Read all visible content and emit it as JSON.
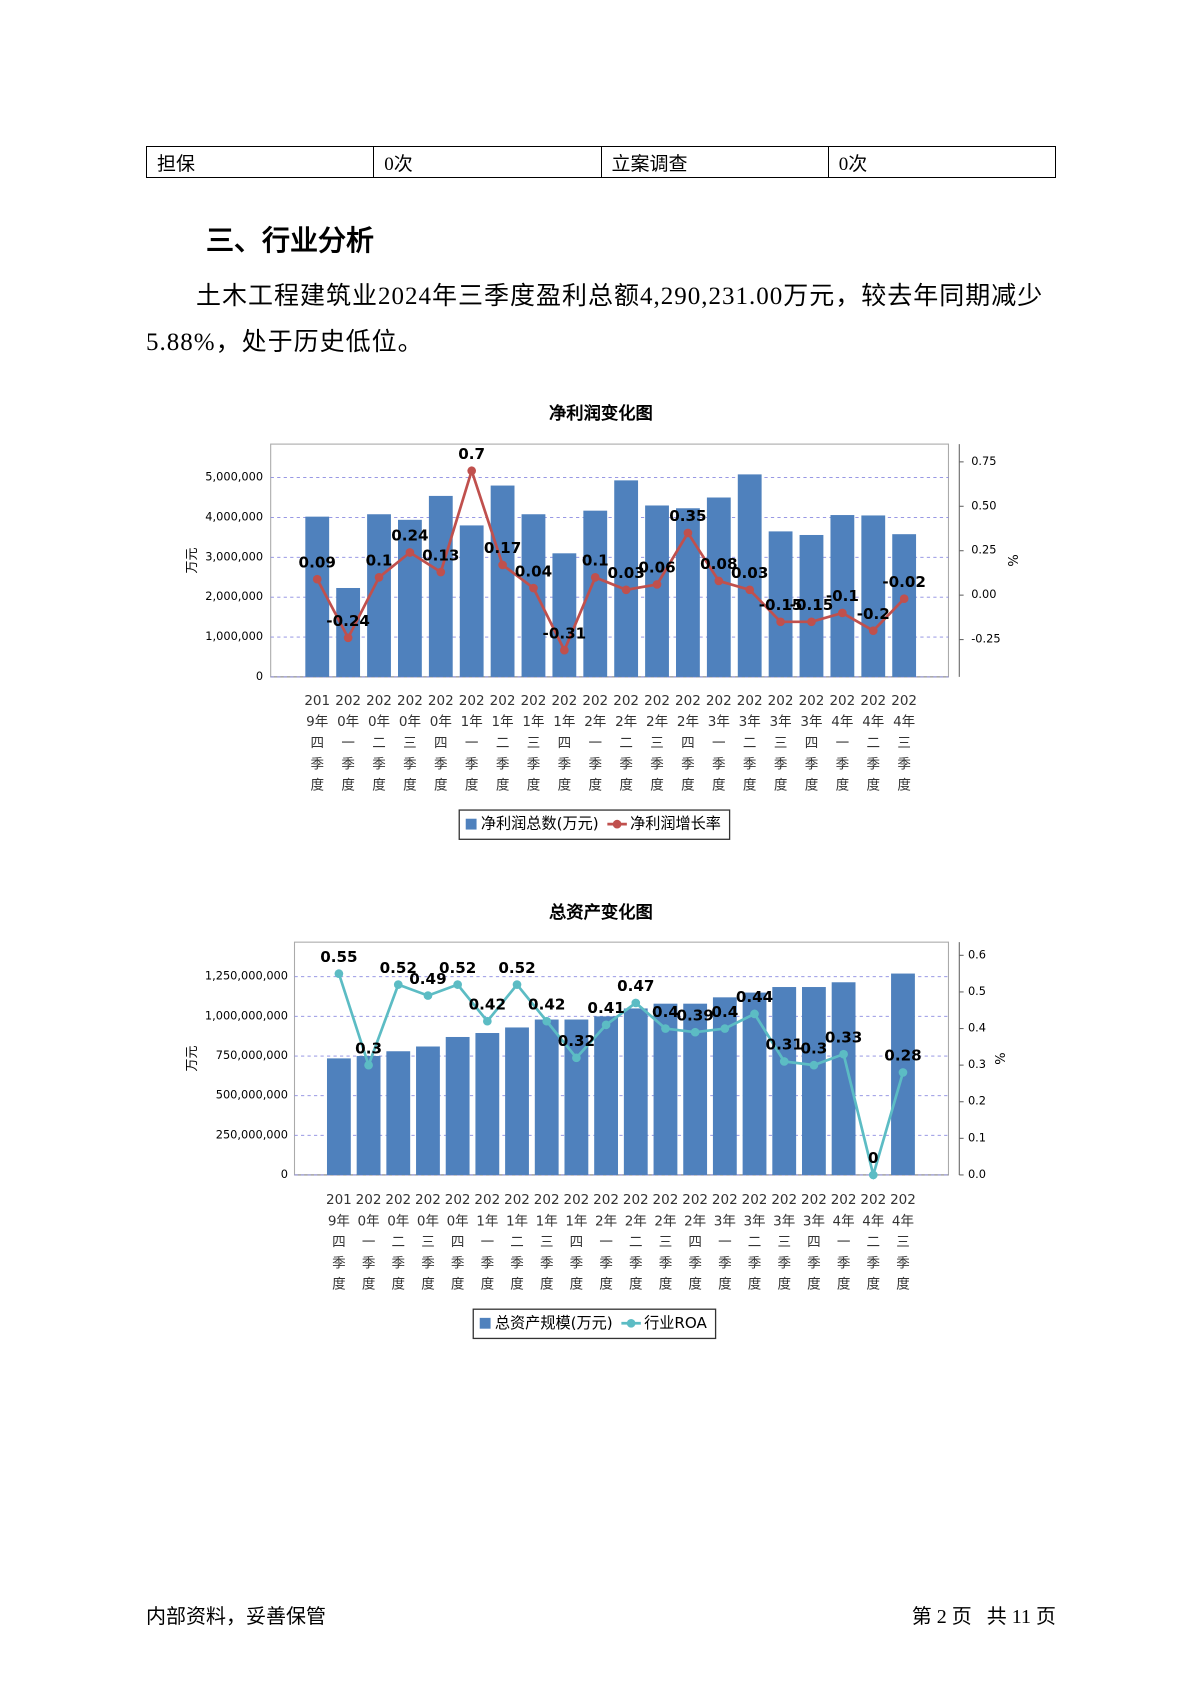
{
  "table": {
    "rows": [
      [
        "担保",
        "0次",
        "立案调查",
        "0次"
      ]
    ]
  },
  "heading": "三、行业分析",
  "paragraph": "土木工程建筑业2024年三季度盈利总额4,290,231.00万元，较去年同期减少5.88%，处于历史低位。",
  "chart_data": [
    {
      "type": "bar",
      "title": "净利润变化图",
      "y_label": "万元",
      "y2_label": "%",
      "categories": [
        "2019年四季度",
        "2020年一季度",
        "2020年二季度",
        "2020年三季度",
        "2020年四季度",
        "2021年一季度",
        "2021年二季度",
        "2021年三季度",
        "2021年四季度",
        "2022年一季度",
        "2022年二季度",
        "2022年三季度",
        "2022年四季度",
        "2023年一季度",
        "2023年二季度",
        "2023年三季度",
        "2023年四季度",
        "2024年一季度",
        "2024年二季度",
        "2024年三季度"
      ],
      "series": [
        {
          "name": "净利润总数(万元)",
          "type": "bar",
          "color": "#4f81bd",
          "values": [
            4020000,
            2230000,
            4080000,
            3940000,
            4540000,
            3800000,
            4800000,
            4080000,
            3100000,
            4170000,
            4930000,
            4300000,
            4230000,
            4500000,
            5080000,
            3650000,
            3560000,
            4060000,
            4050000,
            3580000
          ]
        },
        {
          "name": "净利润增长率",
          "type": "line",
          "axis": "y2",
          "color": "#c0504d",
          "values": [
            0.09,
            -0.24,
            0.1,
            0.24,
            0.13,
            0.7,
            0.17,
            0.04,
            -0.31,
            0.1,
            0.03,
            0.06,
            0.35,
            0.08,
            0.03,
            -0.15,
            -0.15,
            -0.1,
            -0.2,
            -0.02
          ]
        }
      ],
      "ylim": [
        0,
        5840000
      ],
      "yticks": [
        0,
        {
          "value": 1000000,
          "label": "1,000,000"
        },
        {
          "value": 2000000,
          "label": "2,000,000"
        },
        {
          "value": 3000000,
          "label": "3,000,000"
        },
        {
          "value": 4000000,
          "label": "4,000,000"
        },
        {
          "value": 5000000,
          "label": "5,000,000"
        }
      ],
      "y2lim": [
        -0.46,
        0.85
      ],
      "y2ticks": [
        -0.25,
        {
          "value": 0,
          "label": "0.00"
        },
        0.25,
        {
          "value": 0.5,
          "label": "0.50"
        },
        0.75
      ],
      "grid": true,
      "legend": "bottom"
    },
    {
      "type": "bar",
      "title": "总资产变化图",
      "y_label": "万元",
      "y2_label": "%",
      "categories": [
        "2019年四季度",
        "2020年一季度",
        "2020年二季度",
        "2020年三季度",
        "2020年四季度",
        "2021年一季度",
        "2021年二季度",
        "2021年三季度",
        "2021年四季度",
        "2022年一季度",
        "2022年二季度",
        "2022年三季度",
        "2022年四季度",
        "2023年一季度",
        "2023年二季度",
        "2023年三季度",
        "2023年四季度",
        "2024年一季度",
        "2024年二季度",
        "2024年三季度"
      ],
      "series": [
        {
          "name": "总资产规模(万元)",
          "type": "bar",
          "color": "#4f81bd",
          "values": [
            735000000,
            750000000,
            780000000,
            810000000,
            870000000,
            895000000,
            930000000,
            980000000,
            980000000,
            1000000000,
            1050000000,
            1080000000,
            1080000000,
            1120000000,
            1150000000,
            1185000000,
            1185000000,
            1215000000,
            null,
            1270000000
          ]
        },
        {
          "name": "行业ROA",
          "type": "line",
          "axis": "y2",
          "color": "#5cbcc4",
          "values": [
            0.55,
            0.3,
            0.52,
            0.49,
            0.52,
            0.42,
            0.52,
            0.42,
            0.32,
            0.41,
            0.47,
            0.4,
            0.39,
            0.4,
            0.44,
            0.31,
            0.3,
            0.33,
            0,
            0.28
          ]
        }
      ],
      "ylim": [
        0,
        1468000000
      ],
      "yticks": [
        0,
        {
          "value": 250000000,
          "label": "250,000,000"
        },
        {
          "value": 500000000,
          "label": "500,000,000"
        },
        {
          "value": 750000000,
          "label": "750,000,000"
        },
        {
          "value": 1000000000,
          "label": "1,000,000,000"
        },
        {
          "value": 1250000000,
          "label": "1,250,000,000"
        }
      ],
      "y2lim": [
        0,
        0.636
      ],
      "y2ticks": [
        {
          "value": 0,
          "label": "0.0"
        },
        0.1,
        0.2,
        0.3,
        0.4,
        0.5,
        0.6
      ],
      "grid": true,
      "legend": "bottom"
    }
  ],
  "footer": {
    "left": "内部资料，妥善保管",
    "right": "第 2 页   共 11 页"
  }
}
